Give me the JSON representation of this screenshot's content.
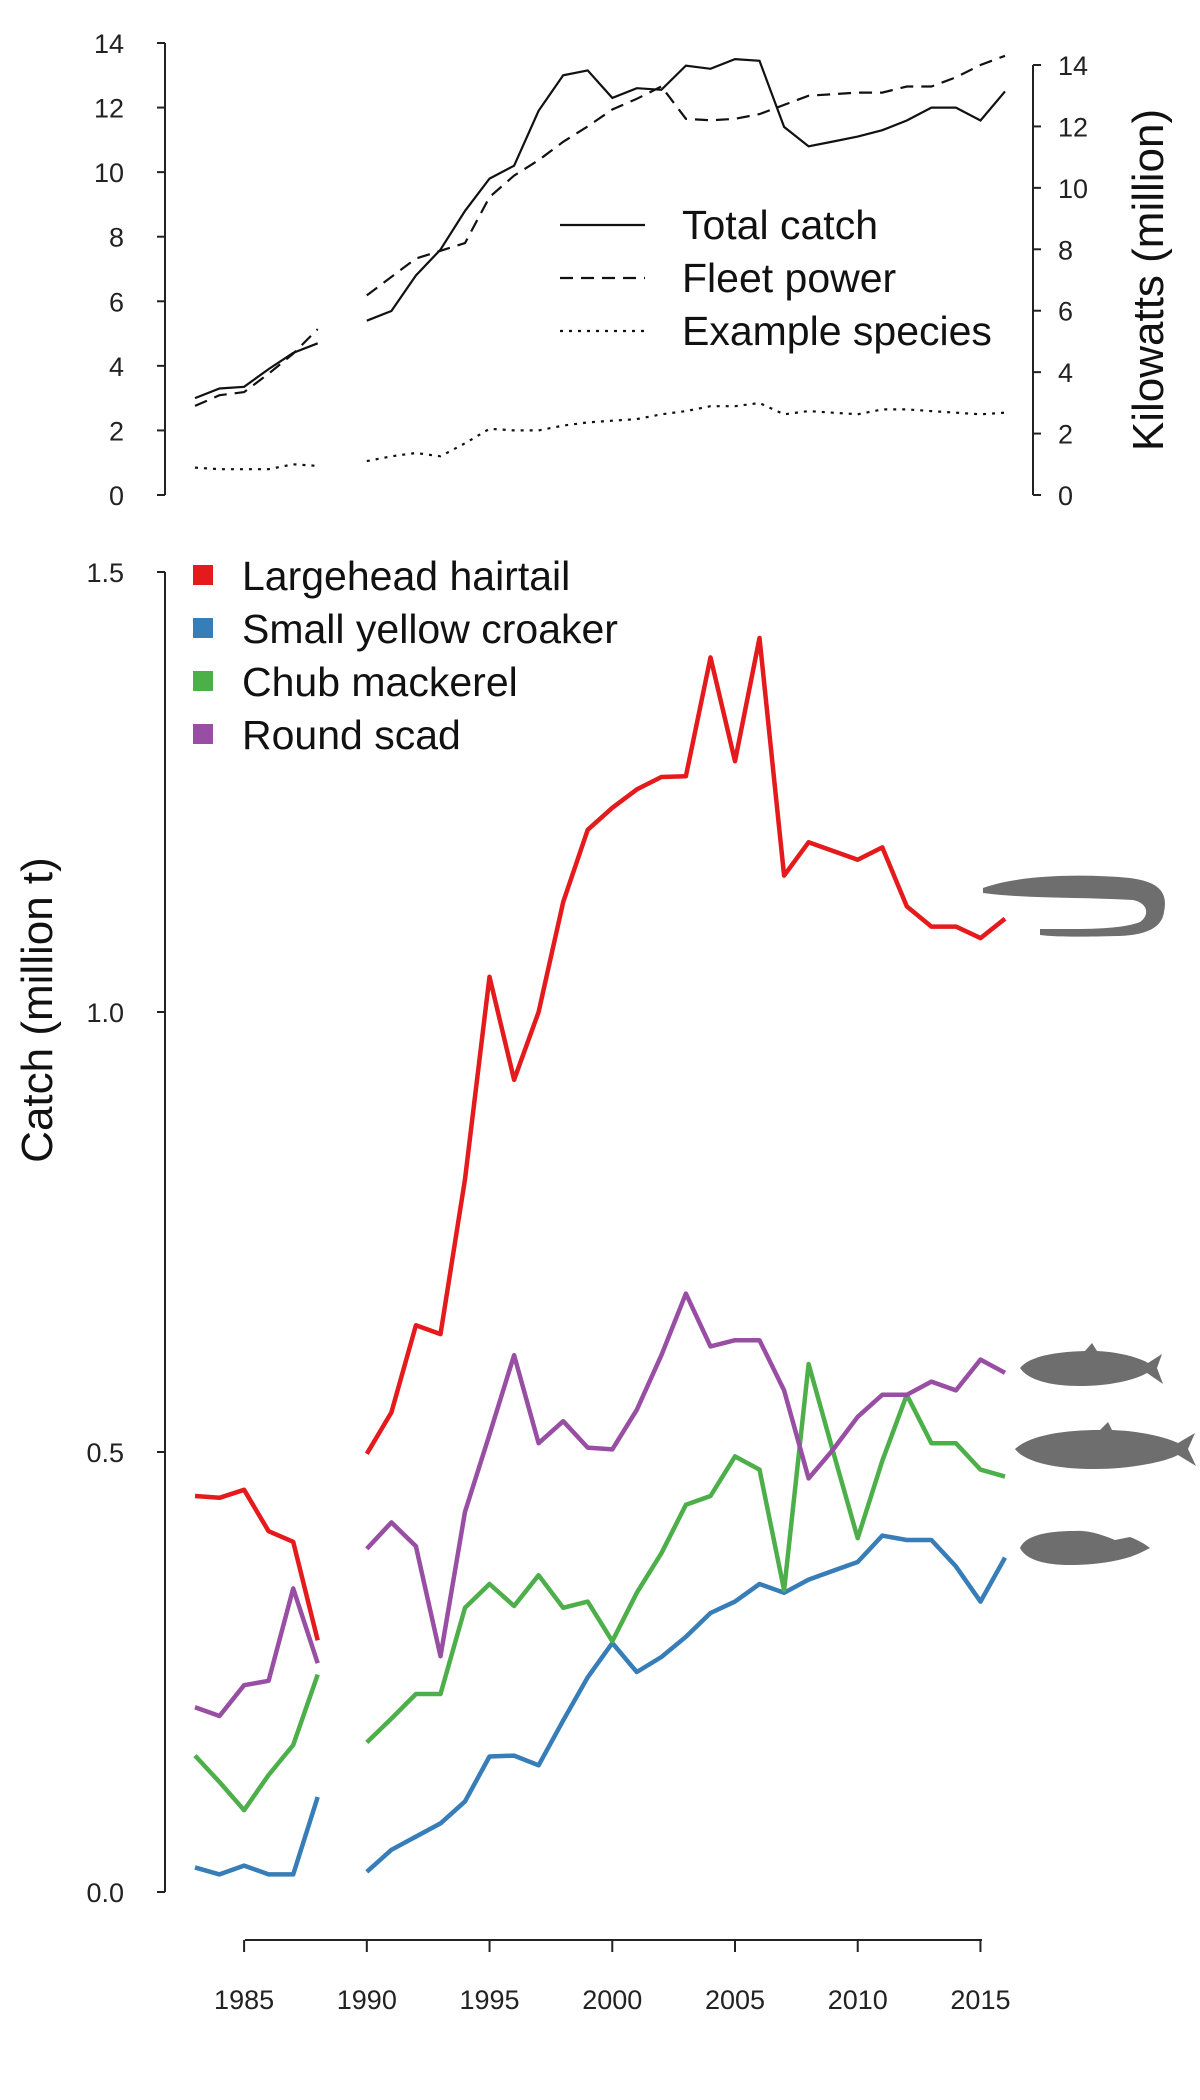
{
  "chart_data": [
    {
      "type": "line",
      "ylabel": "",
      "y2label": "Kilowatts (million)",
      "ylim": [
        0,
        14
      ],
      "y2lim": [
        0,
        14
      ],
      "yticks": [
        0,
        2,
        4,
        6,
        8,
        10,
        12,
        14
      ],
      "y2ticks": [
        0,
        2,
        4,
        6,
        8,
        10,
        12,
        14
      ],
      "legend_position": "right",
      "series": [
        {
          "name": "Total catch",
          "style": "solid",
          "axis": "left",
          "x": [
            1983,
            1984,
            1985,
            1986,
            1987,
            1988,
            1990,
            1991,
            1992,
            1993,
            1994,
            1995,
            1996,
            1997,
            1998,
            1999,
            2000,
            2001,
            2002,
            2003,
            2004,
            2005,
            2006,
            2007,
            2008,
            2009,
            2010,
            2011,
            2012,
            2013,
            2014,
            2015,
            2016
          ],
          "y": [
            3.0,
            3.3,
            3.35,
            3.9,
            4.4,
            4.7,
            5.4,
            5.7,
            6.8,
            7.6,
            8.8,
            9.8,
            10.2,
            11.9,
            13.0,
            13.15,
            12.3,
            12.6,
            12.55,
            13.3,
            13.2,
            13.5,
            13.45,
            11.4,
            10.8,
            10.95,
            11.1,
            11.3,
            11.6,
            12.0,
            12.0,
            11.6,
            12.5
          ]
        },
        {
          "name": "Fleet power",
          "style": "dashed",
          "axis": "right",
          "x": [
            1983,
            1984,
            1985,
            1986,
            1987,
            1988,
            1990,
            1991,
            1992,
            1993,
            1994,
            1995,
            1996,
            1997,
            1998,
            1999,
            2000,
            2001,
            2002,
            2003,
            2004,
            2005,
            2006,
            2007,
            2008,
            2009,
            2010,
            2011,
            2012,
            2013,
            2014,
            2015,
            2016
          ],
          "y": [
            2.9,
            3.25,
            3.35,
            3.95,
            4.6,
            5.4,
            6.5,
            7.1,
            7.7,
            7.95,
            8.2,
            9.7,
            10.4,
            10.9,
            11.5,
            12.0,
            12.55,
            12.9,
            13.3,
            12.25,
            12.2,
            12.25,
            12.4,
            12.7,
            13.0,
            13.05,
            13.1,
            13.1,
            13.3,
            13.3,
            13.6,
            14.0,
            14.3
          ]
        },
        {
          "name": "Example species",
          "style": "dotted",
          "axis": "left",
          "x": [
            1983,
            1984,
            1985,
            1986,
            1987,
            1988,
            1990,
            1991,
            1992,
            1993,
            1994,
            1995,
            1996,
            1997,
            1998,
            1999,
            2000,
            2001,
            2002,
            2003,
            2004,
            2005,
            2006,
            2007,
            2008,
            2009,
            2010,
            2011,
            2012,
            2013,
            2014,
            2015,
            2016
          ],
          "y": [
            0.85,
            0.8,
            0.8,
            0.8,
            0.95,
            0.9,
            1.05,
            1.2,
            1.3,
            1.2,
            1.6,
            2.05,
            2.0,
            2.0,
            2.15,
            2.25,
            2.3,
            2.35,
            2.5,
            2.6,
            2.75,
            2.75,
            2.85,
            2.5,
            2.6,
            2.55,
            2.5,
            2.65,
            2.65,
            2.6,
            2.55,
            2.5,
            2.55
          ]
        }
      ]
    },
    {
      "type": "line",
      "ylabel": "Catch (million t)",
      "xlabel": "",
      "xlim": [
        1983,
        2016
      ],
      "ylim": [
        0,
        1.5
      ],
      "yticks": [
        "0.0",
        "0.5",
        "1.0",
        "1.5"
      ],
      "xticks": [
        1985,
        1990,
        1995,
        2000,
        2005,
        2010,
        2015
      ],
      "legend_position": "top-left",
      "series": [
        {
          "name": "Largehead hairtail",
          "color": "#e41a1c",
          "x": [
            1983,
            1984,
            1985,
            1986,
            1987,
            1988,
            1990,
            1991,
            1992,
            1993,
            1994,
            1995,
            1996,
            1997,
            1998,
            1999,
            2000,
            2001,
            2002,
            2003,
            2004,
            2005,
            2006,
            2007,
            2008,
            2009,
            2010,
            2011,
            2012,
            2013,
            2014,
            2015,
            2016
          ],
          "y": [
            0.45,
            0.448,
            0.457,
            0.41,
            0.398,
            0.286,
            0.498,
            0.545,
            0.644,
            0.634,
            0.81,
            1.04,
            0.923,
            1.0,
            1.125,
            1.207,
            1.232,
            1.253,
            1.267,
            1.268,
            1.403,
            1.285,
            1.425,
            1.155,
            1.193,
            1.183,
            1.173,
            1.187,
            1.12,
            1.097,
            1.097,
            1.084,
            1.106
          ]
        },
        {
          "name": "Small yellow croaker",
          "color": "#377eb8",
          "x": [
            1983,
            1984,
            1985,
            1986,
            1987,
            1988,
            1990,
            1991,
            1992,
            1993,
            1994,
            1995,
            1996,
            1997,
            1998,
            1999,
            2000,
            2001,
            2002,
            2003,
            2004,
            2005,
            2006,
            2007,
            2008,
            2009,
            2010,
            2011,
            2012,
            2013,
            2014,
            2015,
            2016
          ],
          "y": [
            0.028,
            0.02,
            0.03,
            0.02,
            0.02,
            0.108,
            0.023,
            0.048,
            0.063,
            0.078,
            0.103,
            0.154,
            0.155,
            0.144,
            0.195,
            0.244,
            0.283,
            0.25,
            0.267,
            0.29,
            0.317,
            0.33,
            0.35,
            0.34,
            0.355,
            0.365,
            0.375,
            0.405,
            0.4,
            0.4,
            0.37,
            0.33,
            0.38
          ]
        },
        {
          "name": "Chub mackerel",
          "color": "#4daf4a",
          "x": [
            1983,
            1984,
            1985,
            1986,
            1987,
            1988,
            1990,
            1991,
            1992,
            1993,
            1994,
            1995,
            1996,
            1997,
            1998,
            1999,
            2000,
            2001,
            2002,
            2003,
            2004,
            2005,
            2006,
            2007,
            2008,
            2009,
            2010,
            2011,
            2012,
            2013,
            2014,
            2015,
            2016
          ],
          "y": [
            0.155,
            0.125,
            0.093,
            0.133,
            0.167,
            0.247,
            0.17,
            0.197,
            0.225,
            0.225,
            0.323,
            0.35,
            0.325,
            0.36,
            0.323,
            0.33,
            0.285,
            0.34,
            0.385,
            0.44,
            0.45,
            0.495,
            0.48,
            0.343,
            0.6,
            0.5,
            0.402,
            0.49,
            0.565,
            0.51,
            0.51,
            0.48,
            0.472
          ]
        },
        {
          "name": "Round scad",
          "color": "#984ea3",
          "x": [
            1983,
            1984,
            1985,
            1986,
            1987,
            1988,
            1990,
            1991,
            1992,
            1993,
            1994,
            1995,
            1996,
            1997,
            1998,
            1999,
            2000,
            2001,
            2002,
            2003,
            2004,
            2005,
            2006,
            2007,
            2008,
            2009,
            2010,
            2011,
            2012,
            2013,
            2014,
            2015,
            2016
          ],
          "y": [
            0.21,
            0.2,
            0.235,
            0.24,
            0.345,
            0.26,
            0.39,
            0.42,
            0.393,
            0.268,
            0.432,
            0.52,
            0.61,
            0.51,
            0.535,
            0.505,
            0.503,
            0.548,
            0.61,
            0.68,
            0.62,
            0.627,
            0.627,
            0.57,
            0.47,
            0.503,
            0.54,
            0.565,
            0.565,
            0.58,
            0.57,
            0.605,
            0.59
          ]
        }
      ]
    }
  ]
}
